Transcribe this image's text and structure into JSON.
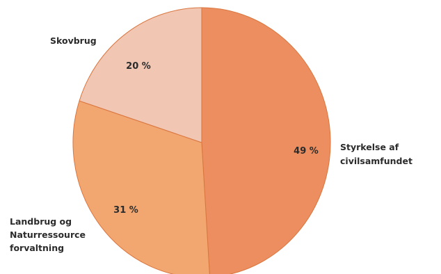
{
  "chart_data": {
    "type": "pie",
    "title": "",
    "legend": "none",
    "slices": [
      {
        "label": "Styrkelse af civilsamfundet",
        "label_lines": [
          "Styrkelse af",
          "civilsamfundet"
        ],
        "value": 49,
        "value_label": "49 %",
        "color": "#ec8e5f"
      },
      {
        "label": "Landbrug og Naturressource forvaltning",
        "label_lines": [
          "Landbrug og",
          "Naturressource",
          "forvaltning"
        ],
        "value": 31,
        "value_label": "31 %",
        "color": "#f3a770"
      },
      {
        "label": "Skovbrug",
        "label_lines": [
          "Skovbrug"
        ],
        "value": 20,
        "value_label": "20 %",
        "color": "#f1c6b2"
      }
    ]
  }
}
